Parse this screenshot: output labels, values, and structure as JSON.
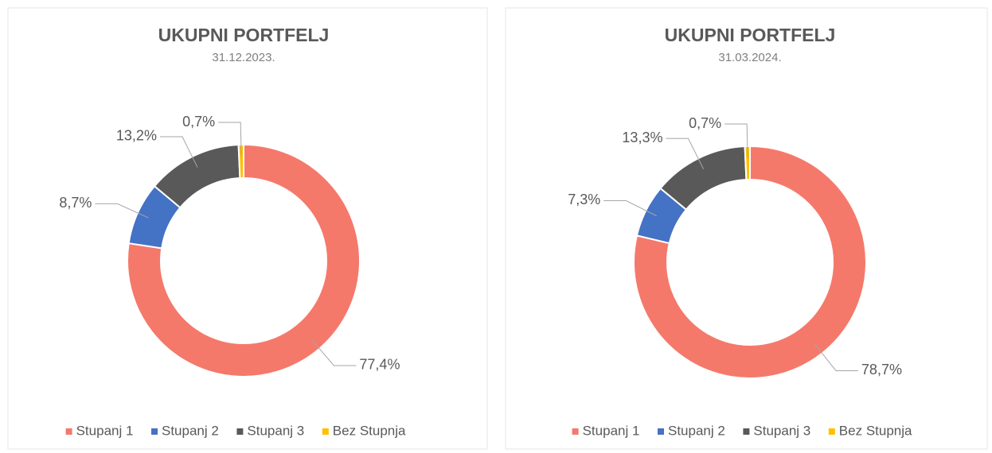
{
  "chart_data": [
    {
      "type": "donut",
      "title": "UKUPNI PORTFELJ",
      "subtitle": "31.12.2023.",
      "categories": [
        "Stupanj 1",
        "Stupanj 2",
        "Stupanj 3",
        "Bez Stupnja"
      ],
      "values": [
        77.4,
        8.7,
        13.2,
        0.7
      ],
      "value_labels": [
        "77,4%",
        "8,7%",
        "13,2%",
        "0,7%"
      ],
      "colors": [
        "#f4796b",
        "#4472c4",
        "#595959",
        "#ffc000"
      ],
      "legend": "bottom"
    },
    {
      "type": "donut",
      "title": "UKUPNI PORTFELJ",
      "subtitle": "31.03.2024.",
      "categories": [
        "Stupanj 1",
        "Stupanj 2",
        "Stupanj 3",
        "Bez Stupnja"
      ],
      "values": [
        78.7,
        7.3,
        13.3,
        0.7
      ],
      "value_labels": [
        "78,7%",
        "7,3%",
        "13,3%",
        "0,7%"
      ],
      "colors": [
        "#f4796b",
        "#4472c4",
        "#595959",
        "#ffc000"
      ],
      "legend": "bottom"
    }
  ]
}
